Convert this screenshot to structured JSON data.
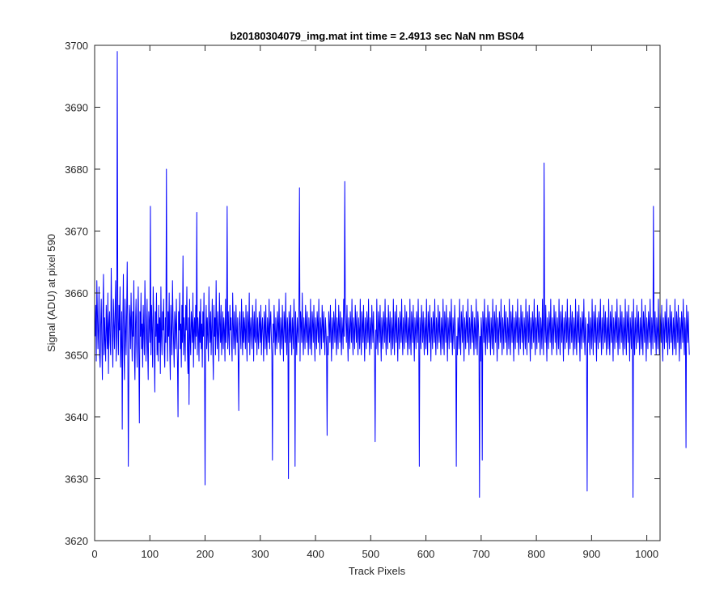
{
  "chart_data": {
    "type": "line",
    "title": "b20180304079_img.mat int time = 2.4913 sec  NaN nm BS04",
    "xlabel": "Track Pixels",
    "ylabel": "Signal (ADU) at pixel 590",
    "xlim": [
      0,
      1024
    ],
    "ylim": [
      3620,
      3700
    ],
    "xticks": [
      0,
      100,
      200,
      300,
      400,
      500,
      600,
      700,
      800,
      900,
      1000
    ],
    "yticks": [
      3620,
      3630,
      3640,
      3650,
      3660,
      3670,
      3680,
      3690,
      3700
    ],
    "grid": false,
    "line_color": "#0000ff",
    "series": [
      {
        "x_start": 1,
        "x_step": 1,
        "values": [
          3653,
          3658,
          3649,
          3662,
          3657,
          3651,
          3654,
          3661,
          3650,
          3648,
          3655,
          3659,
          3652,
          3646,
          3657,
          3663,
          3650,
          3656,
          3652,
          3649,
          3658,
          3654,
          3651,
          3660,
          3647,
          3655,
          3657,
          3652,
          3650,
          3664,
          3656,
          3653,
          3648,
          3659,
          3655,
          3651,
          3657,
          3662,
          3649,
          3653,
          3699,
          3656,
          3650,
          3658,
          3654,
          3661,
          3648,
          3652,
          3657,
          3638,
          3655,
          3663,
          3651,
          3646,
          3659,
          3654,
          3650,
          3657,
          3665,
          3652,
          3632,
          3648,
          3658,
          3656,
          3651,
          3660,
          3654,
          3649,
          3657,
          3653,
          3662,
          3650,
          3646,
          3655,
          3659,
          3652,
          3648,
          3656,
          3661,
          3650,
          3639,
          3657,
          3653,
          3660,
          3651,
          3655,
          3648,
          3658,
          3654,
          3650,
          3662,
          3656,
          3649,
          3653,
          3659,
          3651,
          3646,
          3657,
          3655,
          3652,
          3674,
          3650,
          3658,
          3654,
          3648,
          3661,
          3656,
          3651,
          3644,
          3657,
          3653,
          3660,
          3650,
          3655,
          3649,
          3658,
          3652,
          3656,
          3647,
          3661,
          3653,
          3650,
          3657,
          3654,
          3659,
          3651,
          3648,
          3656,
          3652,
          3680,
          3655,
          3649,
          3657,
          3653,
          3660,
          3651,
          3646,
          3658,
          3654,
          3650,
          3662,
          3656,
          3652,
          3648,
          3657,
          3655,
          3651,
          3659,
          3653,
          3649,
          3640,
          3657,
          3654,
          3660,
          3651,
          3655,
          3648,
          3658,
          3652,
          3666,
          3650,
          3656,
          3653,
          3649,
          3658,
          3654,
          3661,
          3651,
          3647,
          3656,
          3642,
          3659,
          3653,
          3650,
          3657,
          3655,
          3652,
          3660,
          3648,
          3654,
          3656,
          3651,
          3658,
          3653,
          3673,
          3650,
          3656,
          3654,
          3649,
          3657,
          3652,
          3659,
          3651,
          3655,
          3648,
          3657,
          3653,
          3660,
          3650,
          3629,
          3654,
          3658,
          3651,
          3656,
          3653,
          3649,
          3661,
          3655,
          3652,
          3657,
          3650,
          3654,
          3659,
          3651,
          3646,
          3658,
          3653,
          3656,
          3650,
          3662,
          3654,
          3651,
          3657,
          3653,
          3649,
          3660,
          3655,
          3652,
          3658,
          3650,
          3653,
          3657,
          3651,
          3656,
          3654,
          3649,
          3659,
          3652,
          3655,
          3674,
          3651,
          3657,
          3653,
          3650,
          3658,
          3654,
          3656,
          3652,
          3649,
          3660,
          3655,
          3651,
          3657,
          3653,
          3650,
          3658,
          3654,
          3652,
          3656,
          3649,
          3641,
          3655,
          3657,
          3653,
          3651,
          3659,
          3654,
          3650,
          3657,
          3652,
          3656,
          3654,
          3651,
          3658,
          3653,
          3649,
          3657,
          3655,
          3652,
          3660,
          3650,
          3654,
          3656,
          3653,
          3651,
          3658,
          3655,
          3649,
          3657,
          3653,
          3652,
          3659,
          3654,
          3650,
          3656,
          3653,
          3651,
          3657,
          3655,
          3652,
          3658,
          3650,
          3654,
          3656,
          3653,
          3649,
          3657,
          3655,
          3651,
          3658,
          3653,
          3650,
          3656,
          3654,
          3652,
          3659,
          3651,
          3655,
          3657,
          3653,
          3650,
          3633,
          3655,
          3652,
          3658,
          3654,
          3650,
          3656,
          3653,
          3651,
          3657,
          3655,
          3652,
          3659,
          3653,
          3650,
          3656,
          3654,
          3651,
          3658,
          3653,
          3649,
          3657,
          3655,
          3652,
          3660,
          3653,
          3650,
          3656,
          3654,
          3630,
          3657,
          3655,
          3652,
          3658,
          3653,
          3650,
          3656,
          3654,
          3651,
          3659,
          3655,
          3632,
          3657,
          3653,
          3650,
          3656,
          3654,
          3652,
          3658,
          3677,
          3649,
          3657,
          3655,
          3652,
          3660,
          3653,
          3650,
          3656,
          3654,
          3651,
          3658,
          3655,
          3652,
          3657,
          3653,
          3650,
          3656,
          3654,
          3651,
          3659,
          3653,
          3650,
          3657,
          3655,
          3652,
          3658,
          3653,
          3649,
          3656,
          3654,
          3651,
          3657,
          3655,
          3652,
          3659,
          3653,
          3650,
          3656,
          3654,
          3651,
          3658,
          3655,
          3652,
          3657,
          3653,
          3650,
          3656,
          3654,
          3651,
          3637,
          3653,
          3650,
          3657,
          3655,
          3652,
          3658,
          3653,
          3649,
          3656,
          3654,
          3651,
          3657,
          3655,
          3652,
          3659,
          3653,
          3650,
          3656,
          3654,
          3651,
          3658,
          3655,
          3652,
          3657,
          3653,
          3650,
          3656,
          3654,
          3651,
          3659,
          3653,
          3678,
          3657,
          3655,
          3652,
          3658,
          3653,
          3649,
          3656,
          3654,
          3651,
          3657,
          3655,
          3652,
          3659,
          3653,
          3650,
          3656,
          3654,
          3651,
          3658,
          3655,
          3652,
          3657,
          3653,
          3650,
          3656,
          3654,
          3651,
          3659,
          3653,
          3650,
          3657,
          3655,
          3652,
          3658,
          3653,
          3649,
          3656,
          3654,
          3651,
          3657,
          3655,
          3652,
          3659,
          3653,
          3650,
          3656,
          3654,
          3651,
          3658,
          3655,
          3652,
          3657,
          3653,
          3650,
          3636,
          3654,
          3651,
          3659,
          3653,
          3650,
          3657,
          3655,
          3652,
          3658,
          3653,
          3649,
          3656,
          3654,
          3651,
          3657,
          3655,
          3652,
          3659,
          3653,
          3650,
          3656,
          3654,
          3651,
          3658,
          3655,
          3652,
          3657,
          3653,
          3650,
          3656,
          3654,
          3651,
          3659,
          3653,
          3650,
          3657,
          3655,
          3652,
          3658,
          3653,
          3649,
          3656,
          3654,
          3651,
          3657,
          3655,
          3652,
          3659,
          3653,
          3650,
          3656,
          3654,
          3651,
          3658,
          3655,
          3652,
          3657,
          3653,
          3650,
          3656,
          3654,
          3651,
          3659,
          3653,
          3650,
          3657,
          3655,
          3652,
          3658,
          3653,
          3649,
          3656,
          3654,
          3651,
          3657,
          3655,
          3652,
          3659,
          3653,
          3632,
          3656,
          3654,
          3651,
          3658,
          3655,
          3652,
          3657,
          3653,
          3650,
          3656,
          3654,
          3651,
          3659,
          3653,
          3650,
          3657,
          3655,
          3652,
          3658,
          3653,
          3649,
          3656,
          3654,
          3651,
          3657,
          3655,
          3652,
          3659,
          3653,
          3650,
          3656,
          3654,
          3651,
          3658,
          3655,
          3652,
          3657,
          3653,
          3650,
          3656,
          3654,
          3651,
          3659,
          3653,
          3650,
          3657,
          3655,
          3652,
          3658,
          3653,
          3649,
          3656,
          3654,
          3651,
          3657,
          3655,
          3652,
          3659,
          3653,
          3650,
          3656,
          3654,
          3651,
          3658,
          3655,
          3652,
          3632,
          3653,
          3650,
          3656,
          3654,
          3651,
          3659,
          3653,
          3650,
          3657,
          3655,
          3652,
          3658,
          3653,
          3649,
          3656,
          3654,
          3651,
          3657,
          3655,
          3652,
          3659,
          3653,
          3650,
          3656,
          3654,
          3651,
          3658,
          3655,
          3652,
          3657,
          3653,
          3650,
          3656,
          3654,
          3651,
          3659,
          3653,
          3650,
          3657,
          3655,
          3652,
          3627,
          3653,
          3649,
          3656,
          3654,
          3633,
          3657,
          3655,
          3652,
          3659,
          3653,
          3650,
          3656,
          3654,
          3651,
          3658,
          3655,
          3652,
          3657,
          3653,
          3650,
          3656,
          3654,
          3651,
          3659,
          3653,
          3650,
          3657,
          3655,
          3652,
          3658,
          3653,
          3649,
          3656,
          3654,
          3651,
          3657,
          3655,
          3652,
          3659,
          3653,
          3650,
          3656,
          3654,
          3651,
          3658,
          3655,
          3652,
          3657,
          3653,
          3650,
          3656,
          3654,
          3651,
          3659,
          3653,
          3650,
          3657,
          3655,
          3652,
          3658,
          3653,
          3649,
          3656,
          3654,
          3651,
          3657,
          3655,
          3652,
          3659,
          3653,
          3650,
          3656,
          3654,
          3651,
          3658,
          3655,
          3652,
          3657,
          3653,
          3650,
          3656,
          3654,
          3651,
          3659,
          3653,
          3650,
          3657,
          3655,
          3652,
          3658,
          3653,
          3649,
          3656,
          3654,
          3651,
          3657,
          3655,
          3652,
          3659,
          3653,
          3650,
          3656,
          3654,
          3651,
          3658,
          3655,
          3652,
          3657,
          3653,
          3650,
          3656,
          3654,
          3651,
          3659,
          3653,
          3650,
          3681,
          3655,
          3652,
          3658,
          3653,
          3649,
          3656,
          3654,
          3651,
          3657,
          3655,
          3652,
          3659,
          3653,
          3650,
          3656,
          3654,
          3651,
          3658,
          3655,
          3652,
          3657,
          3653,
          3650,
          3656,
          3654,
          3651,
          3659,
          3653,
          3650,
          3657,
          3655,
          3652,
          3658,
          3653,
          3649,
          3656,
          3654,
          3651,
          3657,
          3655,
          3652,
          3659,
          3653,
          3650,
          3656,
          3654,
          3651,
          3658,
          3655,
          3652,
          3657,
          3653,
          3650,
          3656,
          3654,
          3651,
          3659,
          3653,
          3650,
          3657,
          3655,
          3652,
          3658,
          3653,
          3649,
          3656,
          3654,
          3651,
          3657,
          3655,
          3652,
          3659,
          3653,
          3650,
          3656,
          3654,
          3651,
          3628,
          3655,
          3652,
          3657,
          3653,
          3650,
          3656,
          3654,
          3651,
          3659,
          3653,
          3650,
          3657,
          3655,
          3652,
          3658,
          3653,
          3649,
          3656,
          3654,
          3651,
          3657,
          3655,
          3652,
          3659,
          3653,
          3650,
          3656,
          3654,
          3651,
          3658,
          3655,
          3652,
          3657,
          3653,
          3650,
          3656,
          3654,
          3651,
          3659,
          3653,
          3650,
          3657,
          3655,
          3652,
          3658,
          3653,
          3649,
          3656,
          3654,
          3651,
          3657,
          3655,
          3652,
          3659,
          3653,
          3650,
          3656,
          3654,
          3651,
          3658,
          3655,
          3652,
          3657,
          3653,
          3650,
          3656,
          3654,
          3651,
          3659,
          3653,
          3650,
          3657,
          3655,
          3652,
          3658,
          3653,
          3649,
          3656,
          3654,
          3651,
          3657,
          3655,
          3627,
          3659,
          3653,
          3650,
          3656,
          3654,
          3651,
          3658,
          3655,
          3652,
          3657,
          3653,
          3650,
          3656,
          3654,
          3651,
          3659,
          3653,
          3650,
          3657,
          3655,
          3652,
          3658,
          3653,
          3649,
          3656,
          3654,
          3651,
          3657,
          3655,
          3652,
          3659,
          3653,
          3650,
          3656,
          3654,
          3651,
          3674,
          3655,
          3652,
          3657,
          3653,
          3650,
          3656,
          3654,
          3651,
          3659,
          3653,
          3650,
          3657,
          3655,
          3652,
          3658,
          3653,
          3649,
          3656,
          3654,
          3651,
          3657,
          3655,
          3652,
          3659,
          3653,
          3650,
          3656,
          3654,
          3651,
          3658,
          3655,
          3652,
          3657,
          3653,
          3650,
          3656,
          3654,
          3651,
          3659,
          3653,
          3650,
          3657,
          3655,
          3652,
          3658,
          3653,
          3649,
          3656,
          3654,
          3651,
          3657,
          3655,
          3652,
          3659,
          3653,
          3650,
          3656,
          3654,
          3635,
          3658,
          3655,
          3652,
          3657,
          3653,
          3650
        ]
      }
    ]
  }
}
